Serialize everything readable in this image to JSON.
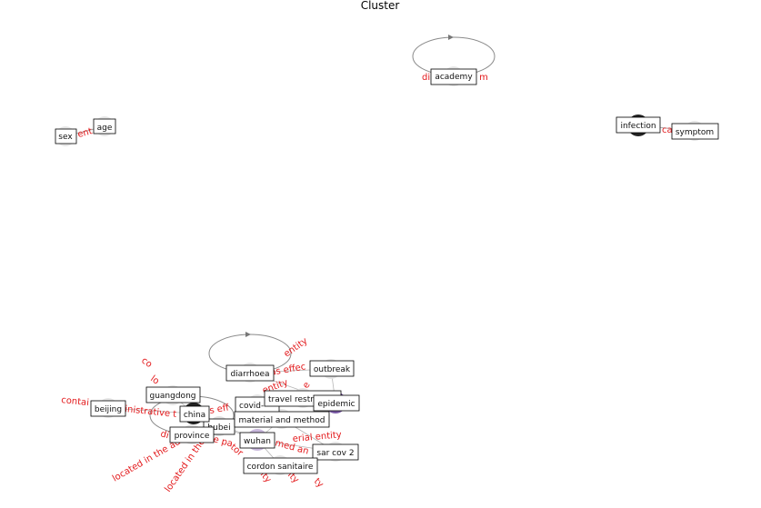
{
  "title": "Cluster",
  "nodes": {
    "academy": "academy",
    "sex": "sex",
    "age": "age",
    "infection": "infection",
    "symptom": "symptom",
    "diarrhoea": "diarrhoea",
    "outbreak": "outbreak",
    "guangdong": "guangdong",
    "travel": "travel restr",
    "covid": "covid-",
    "epidemic": "epidemic",
    "beijing": "beijing",
    "china": "china",
    "material": "material and method",
    "hubei": "hubei",
    "province": "province",
    "wuhan": "wuhan",
    "sarcov": "sar cov 2",
    "cordon": "cordon sanitaire"
  },
  "edge_labels": {
    "academy_self": "di                 m",
    "sex_age": "ent",
    "infection_symptom": "ca",
    "e1": "entity",
    "e2": "as effec",
    "e3": "co",
    "e4": "lo",
    "e5": "contai",
    "e6": "inistrative t",
    "e7": "s eff",
    "e8": "entity",
    "e9": "e",
    "e10": "di",
    "e11": "e pa",
    "e12": "med an",
    "e13": "erial entity",
    "e14": "located in the ad",
    "e15": "located in the",
    "e16": "tor",
    "e17": "ity",
    "e18": "ity",
    "e19": "ty"
  }
}
